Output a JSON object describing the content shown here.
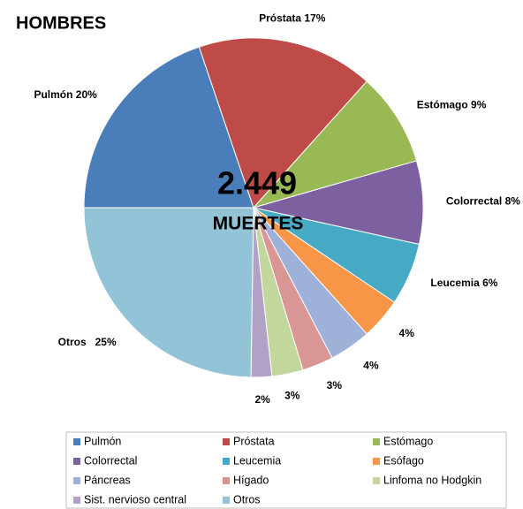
{
  "chart_data": {
    "type": "pie",
    "title": "HOMBRES",
    "center_text": [
      "2.449",
      "MUERTES"
    ],
    "categories": [
      "Pulmón",
      "Próstata",
      "Estómago",
      "Colorrectal",
      "Leucemia",
      "Esófago",
      "Páncreas",
      "Hígado",
      "Linfoma no Hodgkin",
      "Sist. nervioso central",
      "Otros"
    ],
    "values": [
      20,
      17,
      9,
      8,
      6,
      4,
      4,
      3,
      3,
      2,
      25
    ],
    "value_labels": [
      "Pulmón 20%",
      "Próstata 17%",
      "Estómago 9%",
      "Colorrectal 8%",
      "Leucemia 6%",
      "4%",
      "4%",
      "3%",
      "3%",
      "2%",
      "Otros   25%"
    ],
    "colors": [
      "#4a7ebb",
      "#be4b48",
      "#98b954",
      "#7d60a0",
      "#46aac5",
      "#f79646",
      "#9eb1d9",
      "#d99694",
      "#c3d69b",
      "#b3a2c7",
      "#92c3d6"
    ],
    "legend": "bottom"
  }
}
